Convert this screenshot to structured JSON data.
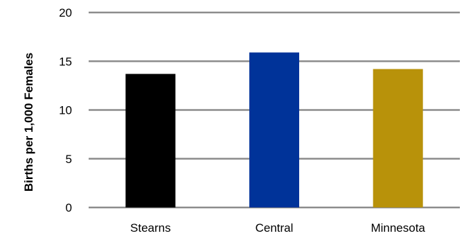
{
  "chart_data": {
    "type": "bar",
    "title": "",
    "xlabel": "",
    "ylabel": "Births per 1,000 Females",
    "categories": [
      "Stearns",
      "Central",
      "Minnesota"
    ],
    "values": [
      13.7,
      15.9,
      14.2
    ],
    "colors": [
      "#000000",
      "#003399",
      "#B8920A"
    ],
    "ylim": [
      0,
      20
    ],
    "yticks": [
      0,
      5,
      10,
      15,
      20
    ],
    "ytick_labels": [
      "0",
      "5",
      "10",
      "15",
      "20"
    ],
    "grid": true,
    "grid_color": "#8c8c8c",
    "legend": "none"
  }
}
